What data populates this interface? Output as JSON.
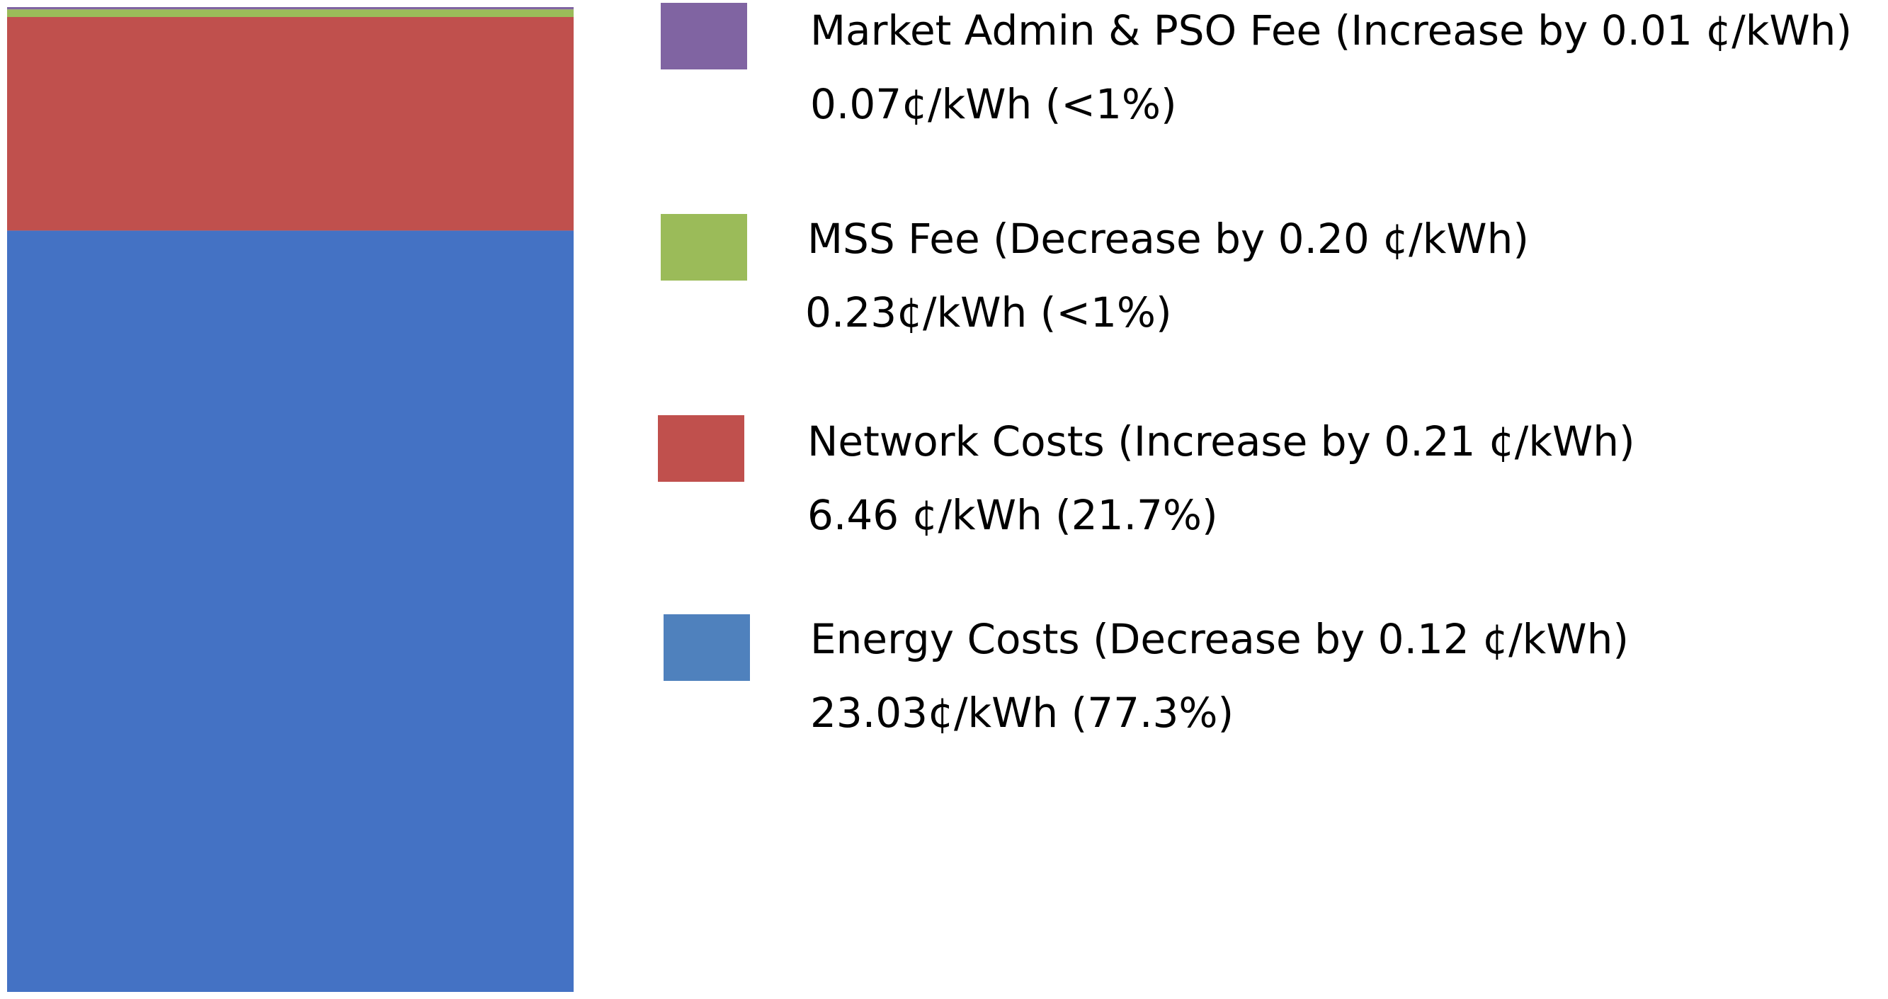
{
  "chart_data": {
    "type": "bar",
    "stacked": true,
    "categories": [
      ""
    ],
    "unit": "¢/kWh",
    "series": [
      {
        "name": "Energy Costs",
        "label": "Energy Costs (Decrease by 0.12 ¢/kWh)",
        "value_text": "23.03¢/kWh (77.3%)",
        "values": [
          23.03
        ],
        "percent": 77.3,
        "change": -0.12,
        "color": "#4472C4",
        "legend_color": "#4F81BD"
      },
      {
        "name": "Network Costs",
        "label": "Network Costs (Increase by 0.21 ¢/kWh)",
        "value_text": "6.46 ¢/kWh (21.7%)",
        "values": [
          6.46
        ],
        "percent": 21.7,
        "change": 0.21,
        "color": "#C0504D",
        "legend_color": "#C0504D"
      },
      {
        "name": "MSS Fee",
        "label": "MSS Fee (Decrease by 0.20 ¢/kWh)",
        "value_text": "0.23¢/kWh (<1%)",
        "values": [
          0.23
        ],
        "percent": null,
        "change": -0.2,
        "color": "#9BBB59",
        "legend_color": "#9BBB59"
      },
      {
        "name": "Market Admin & PSO Fee",
        "label": "Market Admin & PSO Fee (Increase by 0.01 ¢/kWh)",
        "value_text": "0.07¢/kWh (<1%)",
        "values": [
          0.07
        ],
        "percent": null,
        "change": 0.01,
        "color": "#8064A2",
        "legend_color": "#8064A2"
      }
    ],
    "legend_order": [
      3,
      2,
      1,
      0
    ],
    "title": "",
    "xlabel": "",
    "ylabel": "",
    "ylim": [
      0,
      29.79
    ],
    "grid": false,
    "legend": "right"
  }
}
